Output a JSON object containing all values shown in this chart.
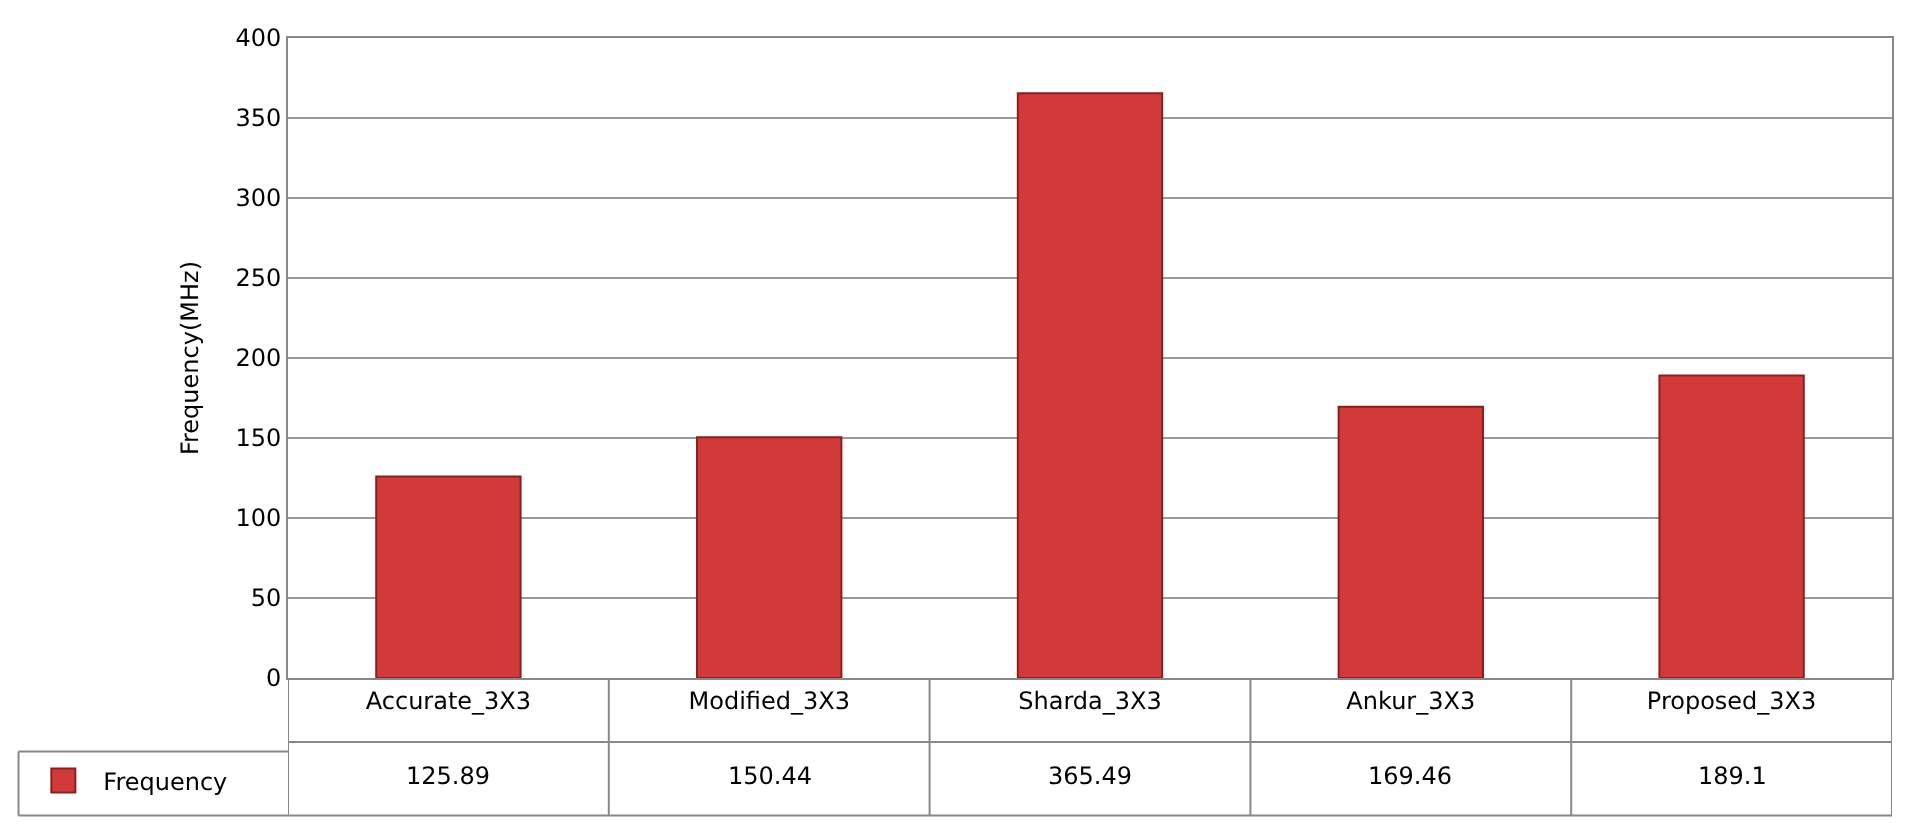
{
  "chart_data": {
    "type": "bar",
    "ylabel": "Frequency(MHz)",
    "categories": [
      "Accurate_3X3",
      "Modified_3X3",
      "Sharda_3X3",
      "Ankur_3X3",
      "Proposed_3X3"
    ],
    "series": [
      {
        "name": "Frequency",
        "color": "#d23a3a",
        "values": [
          125.89,
          150.44,
          365.49,
          169.46,
          189.1
        ]
      }
    ],
    "ylim": [
      0,
      400
    ],
    "yticks": [
      0,
      50,
      100,
      150,
      200,
      250,
      300,
      350,
      400
    ],
    "grid": "y",
    "data_labels": true,
    "legend": "bottom left"
  }
}
